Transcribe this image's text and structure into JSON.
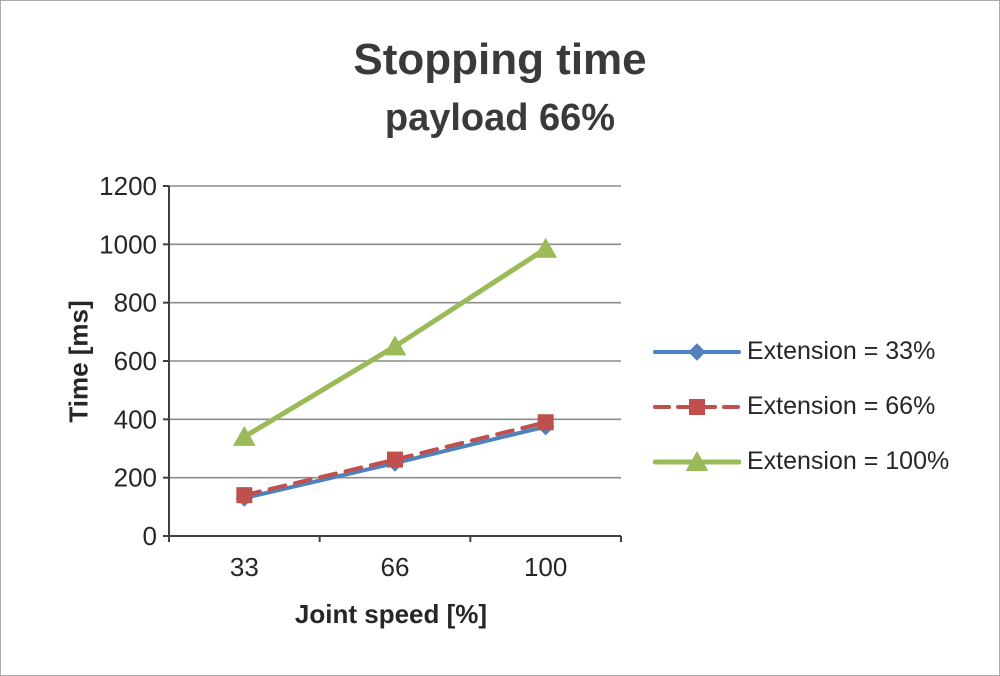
{
  "chart_data": {
    "type": "line",
    "title": "Stopping time",
    "subtitle": "payload 66%",
    "xlabel": "Joint speed [%]",
    "ylabel": "Time [ms]",
    "categories": [
      "33",
      "66",
      "100"
    ],
    "ylim": [
      0,
      1200
    ],
    "yticks": [
      0,
      200,
      400,
      600,
      800,
      1000,
      1200
    ],
    "grid": "horizontal",
    "legend_position": "right",
    "series": [
      {
        "name": "Extension = 33%",
        "values": [
          130,
          250,
          375
        ],
        "color": "#4F81BD",
        "marker": "diamond",
        "line_style": "solid"
      },
      {
        "name": "Extension = 66%",
        "values": [
          140,
          262,
          390
        ],
        "color": "#C0504D",
        "marker": "square",
        "line_style": "dashed"
      },
      {
        "name": "Extension = 100%",
        "values": [
          340,
          650,
          985
        ],
        "color": "#9BBB59",
        "marker": "triangle",
        "line_style": "solid"
      }
    ]
  }
}
